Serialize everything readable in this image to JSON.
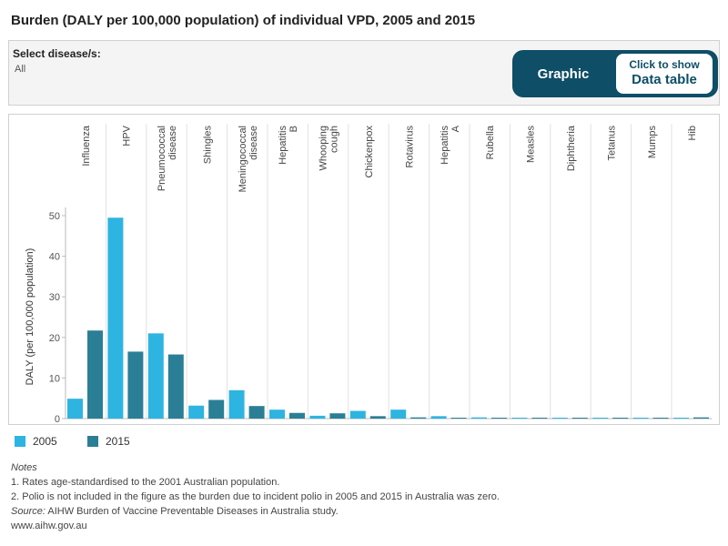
{
  "header": {
    "title": "Burden (DALY per 100,000 population) of individual VPD, 2005 and 2015"
  },
  "filter": {
    "label": "Select disease/s:",
    "value": "All"
  },
  "toggle": {
    "graphic_label": "Graphic",
    "data_small": "Click to show",
    "data_big": "Data table"
  },
  "colors": {
    "series_2005": "#2eb4e0",
    "series_2015": "#2a7f96",
    "toggle_bg": "#0e4e66"
  },
  "chart_data": {
    "type": "bar",
    "categories": [
      "Influenza",
      "HPV",
      "Pneumococcal disease",
      "Shingles",
      "Meningococcal disease",
      "Hepatitis B",
      "Whooping cough",
      "Chickenpox",
      "Rotavirus",
      "Hepatitis A",
      "Rubella",
      "Measles",
      "Diphtheria",
      "Tetanus",
      "Mumps",
      "Hib"
    ],
    "series": [
      {
        "name": "2005",
        "values": [
          4.9,
          49.5,
          21.0,
          3.2,
          7.0,
          2.2,
          0.7,
          1.9,
          2.2,
          0.6,
          0.3,
          0.1,
          0.05,
          0.1,
          0.05,
          0.05
        ]
      },
      {
        "name": "2015",
        "values": [
          21.7,
          16.5,
          15.8,
          4.6,
          3.1,
          1.4,
          1.3,
          0.6,
          0.3,
          0.2,
          0.05,
          0.05,
          0.05,
          0.05,
          0.05,
          0.3
        ]
      }
    ],
    "ylabel": "DALY (per 100,000 population)",
    "yticks": [
      0,
      10,
      20,
      30,
      40,
      50
    ],
    "ylim": [
      0,
      50
    ],
    "grid": false,
    "legend_position": "bottom-left"
  },
  "notes": {
    "heading": "Notes",
    "line1": "1. Rates age-standardised to the 2001 Australian population.",
    "line2": "2. Polio is not included in the figure as the burden due to incident polio in 2005 and 2015 in Australia was zero.",
    "source_label": "Source:",
    "source_text": " AIHW Burden of Vaccine Preventable Diseases in Australia study.",
    "website": "www.aihw.gov.au"
  }
}
